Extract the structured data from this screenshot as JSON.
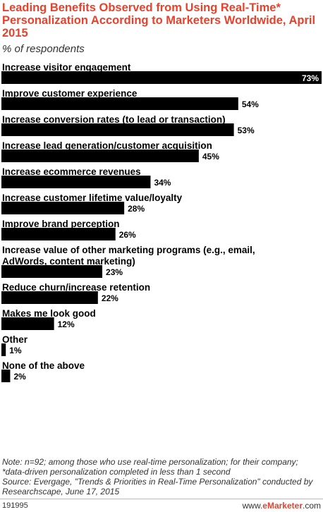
{
  "header": {
    "title": "Leading Benefits Observed from Using Real-Time* Personalization According to Marketers Worldwide, April 2015",
    "subtitle": "% of respondents"
  },
  "chart_data": {
    "type": "bar",
    "orientation": "horizontal",
    "title": "Leading Benefits Observed from Using Real-Time* Personalization According to Marketers Worldwide, April 2015",
    "subtitle": "% of respondents",
    "categories": [
      "Increase visitor engagement",
      "Improve customer experience",
      "Increase conversion rates (to lead or transaction)",
      "Increase lead generation/customer acquisition",
      "Increase ecommerce revenues",
      "Increase customer lifetime value/loyalty",
      "Improve brand perception",
      "Increase value of other marketing programs (e.g., email, AdWords, content marketing)",
      "Reduce churn/increase retention",
      "Makes me look good",
      "Other",
      "None of the above"
    ],
    "category_lines": [
      [
        "Increase visitor engagement"
      ],
      [
        "Improve customer experience"
      ],
      [
        "Increase conversion rates (to lead or transaction)"
      ],
      [
        "Increase lead generation/customer acquisition"
      ],
      [
        "Increase ecommerce revenues"
      ],
      [
        "Increase customer lifetime value/loyalty"
      ],
      [
        "Improve brand perception"
      ],
      [
        "Increase value of other marketing programs (e.g., email,",
        "AdWords, content marketing)"
      ],
      [
        "Reduce churn/increase retention"
      ],
      [
        "Makes me look good"
      ],
      [
        "Other"
      ],
      [
        "None of the above"
      ]
    ],
    "values": [
      73,
      54,
      53,
      45,
      34,
      28,
      26,
      23,
      22,
      12,
      1,
      2
    ],
    "value_labels": [
      "73%",
      "54%",
      "53%",
      "45%",
      "34%",
      "28%",
      "26%",
      "23%",
      "22%",
      "12%",
      "1%",
      "2%"
    ],
    "xlim": [
      0,
      73
    ],
    "grid": false,
    "legend": "none",
    "colors": {
      "bar": "#000000",
      "title": "#e8412c",
      "inside_label": "#ffffff"
    }
  },
  "footer": {
    "note": "Note: n=92; among those who use real-time personalization; for their company; *data-driven personalization completed in less than 1 second",
    "source": "Source: Evergage, \"Trends & Priorities in Real-Time Personalization\" conducted by Researchscape, June 17, 2015",
    "id": "191995",
    "brand_prefix": "www.",
    "brand_main": "eMarketer",
    "brand_suffix": ".com"
  }
}
